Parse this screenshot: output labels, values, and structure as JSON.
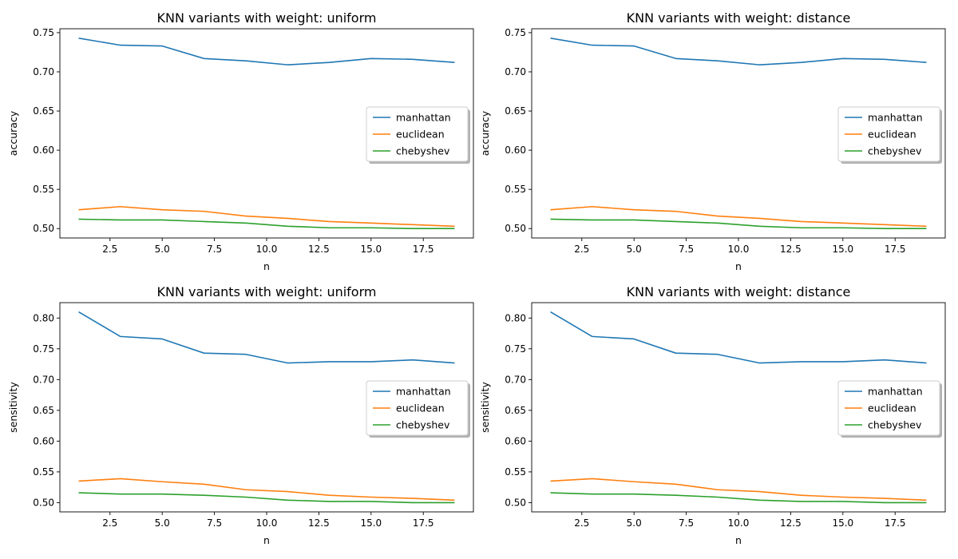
{
  "chart_data": [
    {
      "type": "line",
      "title": "KNN variants with weight: uniform",
      "xlabel": "n",
      "ylabel": "accuracy",
      "xlim": [
        0.1,
        19.9
      ],
      "ylim": [
        0.488,
        0.755
      ],
      "xticks": [
        2.5,
        5.0,
        7.5,
        10.0,
        12.5,
        15.0,
        17.5
      ],
      "xtick_labels": [
        "2.5",
        "5.0",
        "7.5",
        "10.0",
        "12.5",
        "15.0",
        "17.5"
      ],
      "yticks": [
        0.5,
        0.55,
        0.6,
        0.65,
        0.7,
        0.75
      ],
      "ytick_labels": [
        "0.50",
        "0.55",
        "0.60",
        "0.65",
        "0.70",
        "0.75"
      ],
      "x": [
        1,
        3,
        5,
        7,
        9,
        11,
        13,
        15,
        17,
        19
      ],
      "series": [
        {
          "name": "manhattan",
          "values": [
            0.743,
            0.734,
            0.733,
            0.717,
            0.714,
            0.709,
            0.712,
            0.717,
            0.716,
            0.712
          ]
        },
        {
          "name": "euclidean",
          "values": [
            0.524,
            0.528,
            0.524,
            0.522,
            0.516,
            0.513,
            0.509,
            0.507,
            0.505,
            0.503
          ]
        },
        {
          "name": "chebyshev",
          "values": [
            0.512,
            0.511,
            0.511,
            0.509,
            0.507,
            0.503,
            0.501,
            0.501,
            0.5,
            0.5
          ]
        }
      ],
      "legend_position": "center-right",
      "grid": false
    },
    {
      "type": "line",
      "title": "KNN variants with weight: distance",
      "xlabel": "n",
      "ylabel": "accuracy",
      "xlim": [
        0.1,
        19.9
      ],
      "ylim": [
        0.488,
        0.755
      ],
      "xticks": [
        2.5,
        5.0,
        7.5,
        10.0,
        12.5,
        15.0,
        17.5
      ],
      "xtick_labels": [
        "2.5",
        "5.0",
        "7.5",
        "10.0",
        "12.5",
        "15.0",
        "17.5"
      ],
      "yticks": [
        0.5,
        0.55,
        0.6,
        0.65,
        0.7,
        0.75
      ],
      "ytick_labels": [
        "0.50",
        "0.55",
        "0.60",
        "0.65",
        "0.70",
        "0.75"
      ],
      "x": [
        1,
        3,
        5,
        7,
        9,
        11,
        13,
        15,
        17,
        19
      ],
      "series": [
        {
          "name": "manhattan",
          "values": [
            0.743,
            0.734,
            0.733,
            0.717,
            0.714,
            0.709,
            0.712,
            0.717,
            0.716,
            0.712
          ]
        },
        {
          "name": "euclidean",
          "values": [
            0.524,
            0.528,
            0.524,
            0.522,
            0.516,
            0.513,
            0.509,
            0.507,
            0.505,
            0.503
          ]
        },
        {
          "name": "chebyshev",
          "values": [
            0.512,
            0.511,
            0.511,
            0.509,
            0.507,
            0.503,
            0.501,
            0.501,
            0.5,
            0.5
          ]
        }
      ],
      "legend_position": "center-right",
      "grid": false
    },
    {
      "type": "line",
      "title": "KNN variants with weight: uniform",
      "xlabel": "n",
      "ylabel": "sensitivity",
      "xlim": [
        0.1,
        19.9
      ],
      "ylim": [
        0.485,
        0.825
      ],
      "xticks": [
        2.5,
        5.0,
        7.5,
        10.0,
        12.5,
        15.0,
        17.5
      ],
      "xtick_labels": [
        "2.5",
        "5.0",
        "7.5",
        "10.0",
        "12.5",
        "15.0",
        "17.5"
      ],
      "yticks": [
        0.5,
        0.55,
        0.6,
        0.65,
        0.7,
        0.75,
        0.8
      ],
      "ytick_labels": [
        "0.50",
        "0.55",
        "0.60",
        "0.65",
        "0.70",
        "0.75",
        "0.80"
      ],
      "x": [
        1,
        3,
        5,
        7,
        9,
        11,
        13,
        15,
        17,
        19
      ],
      "series": [
        {
          "name": "manhattan",
          "values": [
            0.81,
            0.77,
            0.766,
            0.743,
            0.741,
            0.727,
            0.729,
            0.729,
            0.732,
            0.727
          ]
        },
        {
          "name": "euclidean",
          "values": [
            0.535,
            0.539,
            0.534,
            0.53,
            0.521,
            0.518,
            0.512,
            0.509,
            0.507,
            0.504
          ]
        },
        {
          "name": "chebyshev",
          "values": [
            0.516,
            0.514,
            0.514,
            0.512,
            0.509,
            0.504,
            0.502,
            0.502,
            0.5,
            0.5
          ]
        }
      ],
      "legend_position": "center-right",
      "grid": false
    },
    {
      "type": "line",
      "title": "KNN variants with weight: distance",
      "xlabel": "n",
      "ylabel": "sensitivity",
      "xlim": [
        0.1,
        19.9
      ],
      "ylim": [
        0.485,
        0.825
      ],
      "xticks": [
        2.5,
        5.0,
        7.5,
        10.0,
        12.5,
        15.0,
        17.5
      ],
      "xtick_labels": [
        "2.5",
        "5.0",
        "7.5",
        "10.0",
        "12.5",
        "15.0",
        "17.5"
      ],
      "yticks": [
        0.5,
        0.55,
        0.6,
        0.65,
        0.7,
        0.75,
        0.8
      ],
      "ytick_labels": [
        "0.50",
        "0.55",
        "0.60",
        "0.65",
        "0.70",
        "0.75",
        "0.80"
      ],
      "x": [
        1,
        3,
        5,
        7,
        9,
        11,
        13,
        15,
        17,
        19
      ],
      "series": [
        {
          "name": "manhattan",
          "values": [
            0.81,
            0.77,
            0.766,
            0.743,
            0.741,
            0.727,
            0.729,
            0.729,
            0.732,
            0.727
          ]
        },
        {
          "name": "euclidean",
          "values": [
            0.535,
            0.539,
            0.534,
            0.53,
            0.521,
            0.518,
            0.512,
            0.509,
            0.507,
            0.504
          ]
        },
        {
          "name": "chebyshev",
          "values": [
            0.516,
            0.514,
            0.514,
            0.512,
            0.509,
            0.504,
            0.502,
            0.502,
            0.5,
            0.5
          ]
        }
      ],
      "legend_position": "center-right",
      "grid": false
    }
  ],
  "colors": {
    "manhattan": "#1f77b4",
    "euclidean": "#ff7f0e",
    "chebyshev": "#2ca02c",
    "axis": "#000000",
    "background": "#ffffff"
  }
}
